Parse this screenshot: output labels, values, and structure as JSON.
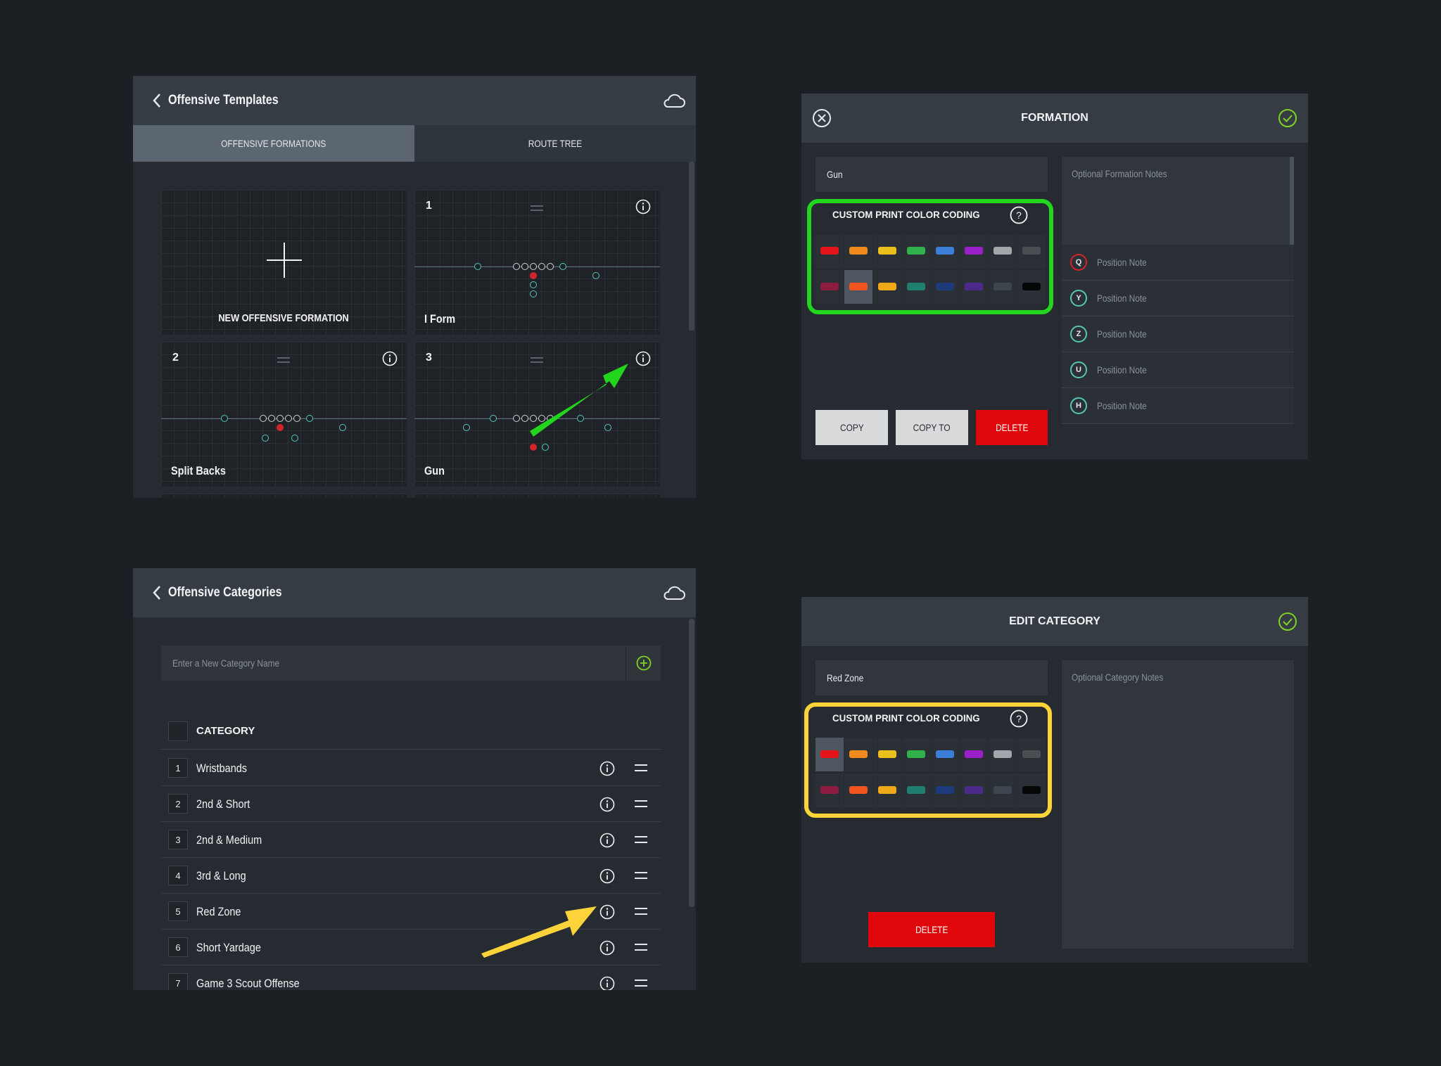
{
  "templates": {
    "title": "Offensive Templates",
    "tabs": [
      "OFFENSIVE FORMATIONS",
      "ROUTE TREE"
    ],
    "new_label": "NEW OFFENSIVE FORMATION",
    "cards": [
      {
        "num": "1",
        "name": "I Form"
      },
      {
        "num": "2",
        "name": "Split Backs"
      },
      {
        "num": "3",
        "name": "Gun"
      }
    ]
  },
  "categories": {
    "title": "Offensive Categories",
    "new_placeholder": "Enter a New Category Name",
    "column_header": "CATEGORY",
    "rows": [
      {
        "num": "1",
        "name": "Wristbands"
      },
      {
        "num": "2",
        "name": "2nd & Short"
      },
      {
        "num": "3",
        "name": "2nd & Medium"
      },
      {
        "num": "4",
        "name": "3rd & Long"
      },
      {
        "num": "5",
        "name": "Red Zone"
      },
      {
        "num": "6",
        "name": "Short Yardage"
      },
      {
        "num": "7",
        "name": "Game 3 Scout Offense"
      }
    ]
  },
  "formation_modal": {
    "title": "FORMATION",
    "name_value": "Gun",
    "notes_placeholder": "Optional Formation Notes",
    "color_coding_title": "CUSTOM PRINT COLOR CODING",
    "buttons": {
      "copy": "COPY",
      "copy_to": "COPY TO",
      "delete": "DELETE"
    },
    "positions": [
      {
        "letter": "Q",
        "note": "Position Note"
      },
      {
        "letter": "Y",
        "note": "Position Note"
      },
      {
        "letter": "Z",
        "note": "Position Note"
      },
      {
        "letter": "U",
        "note": "Position Note"
      },
      {
        "letter": "H",
        "note": "Position Note"
      }
    ]
  },
  "category_modal": {
    "title": "EDIT CATEGORY",
    "name_value": "Red Zone",
    "notes_placeholder": "Optional Category Notes",
    "color_coding_title": "CUSTOM PRINT COLOR CODING",
    "delete_label": "DELETE"
  },
  "palette": {
    "row1": [
      "#e3151b",
      "#f08a1d",
      "#ecc01c",
      "#2fb24c",
      "#3b7fd9",
      "#9a21c9",
      "#a3a7ab",
      "#4a4e52"
    ],
    "row2": [
      "#8c1c40",
      "#f2541f",
      "#eea818",
      "#20806f",
      "#1d3a7a",
      "#4b2a8c",
      "#3d464f",
      "#050607"
    ]
  },
  "colors": {
    "green_highlight": "#22d61e",
    "yellow_highlight": "#fcd338",
    "delete_red": "#e0070c"
  }
}
